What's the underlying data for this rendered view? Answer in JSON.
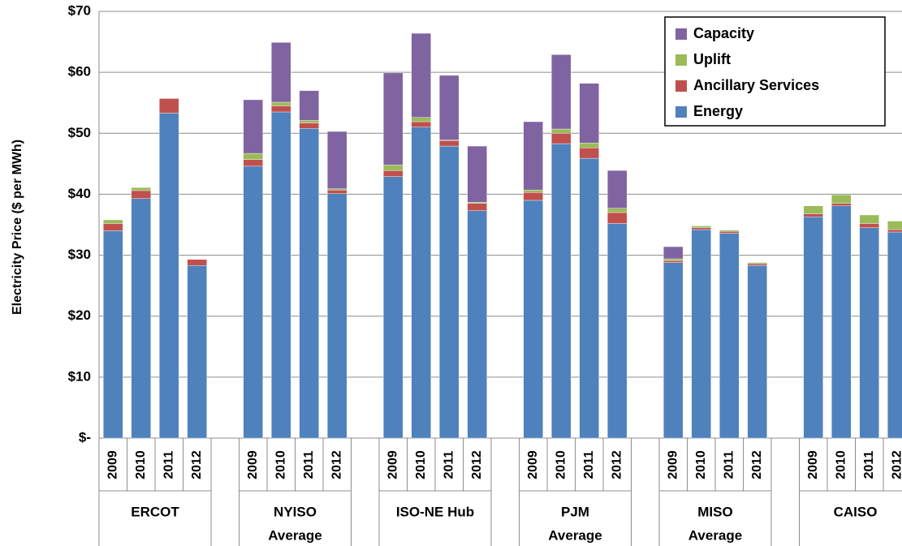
{
  "chart_data": {
    "type": "stacked-bar",
    "y_label": "Electricity Price ($ per MWh)",
    "groups": [
      {
        "label": [
          "ERCOT"
        ],
        "categories": [
          "2009",
          "2010",
          "2011",
          "2012"
        ]
      },
      {
        "label": [
          "NYISO",
          "Average"
        ],
        "categories": [
          "2009",
          "2010",
          "2011",
          "2012"
        ]
      },
      {
        "label": [
          "ISO-NE Hub"
        ],
        "categories": [
          "2009",
          "2010",
          "2011",
          "2012"
        ]
      },
      {
        "label": [
          "PJM",
          "Average"
        ],
        "categories": [
          "2009",
          "2010",
          "2011",
          "2012"
        ]
      },
      {
        "label": [
          "MISO",
          "Average"
        ],
        "categories": [
          "2009",
          "2010",
          "2011",
          "2012"
        ]
      },
      {
        "label": [
          "CAISO"
        ],
        "categories": [
          "2009",
          "2010",
          "2011",
          "2012"
        ]
      }
    ],
    "series": [
      {
        "name": "Energy",
        "color": "#4f81bd",
        "values": [
          34.0,
          39.3,
          53.3,
          28.3,
          44.6,
          53.5,
          50.8,
          40.1,
          42.9,
          51.0,
          47.9,
          37.3,
          39.0,
          48.3,
          45.9,
          35.2,
          28.8,
          34.2,
          33.6,
          28.3,
          36.3,
          38.1,
          34.5,
          33.8
        ]
      },
      {
        "name": "Ancillary Services",
        "color": "#c0504d",
        "values": [
          1.2,
          1.3,
          2.4,
          1.0,
          1.1,
          1.0,
          0.9,
          0.6,
          1.0,
          0.9,
          0.9,
          1.2,
          1.3,
          1.7,
          1.7,
          1.8,
          0.3,
          0.3,
          0.3,
          0.3,
          0.5,
          0.4,
          0.7,
          0.4
        ]
      },
      {
        "name": "Uplift",
        "color": "#9bbb59",
        "values": [
          0.6,
          0.5,
          0,
          0,
          1.0,
          0.6,
          0.4,
          0.2,
          0.9,
          0.7,
          0.1,
          0.2,
          0.4,
          0.7,
          0.8,
          0.7,
          0.3,
          0.3,
          0.2,
          0.2,
          1.3,
          1.4,
          1.4,
          1.4
        ]
      },
      {
        "name": "Capacity",
        "color": "#8064a2",
        "values": [
          0,
          0,
          0,
          0,
          8.8,
          9.8,
          4.9,
          9.4,
          15.1,
          13.8,
          10.6,
          9.2,
          11.2,
          12.2,
          9.8,
          6.2,
          2.0,
          0,
          0,
          0,
          0,
          0,
          0,
          0
        ]
      }
    ],
    "ylim": [
      0,
      70
    ],
    "yticks": [
      {
        "value": 0,
        "label": "$-"
      },
      {
        "value": 10,
        "label": "$10"
      },
      {
        "value": 20,
        "label": "$20"
      },
      {
        "value": 30,
        "label": "$30"
      },
      {
        "value": 40,
        "label": "$40"
      },
      {
        "value": 50,
        "label": "$50"
      },
      {
        "value": 60,
        "label": "$60"
      },
      {
        "value": 70,
        "label": "$70"
      }
    ],
    "grid": true,
    "legend_position": "top-right"
  }
}
